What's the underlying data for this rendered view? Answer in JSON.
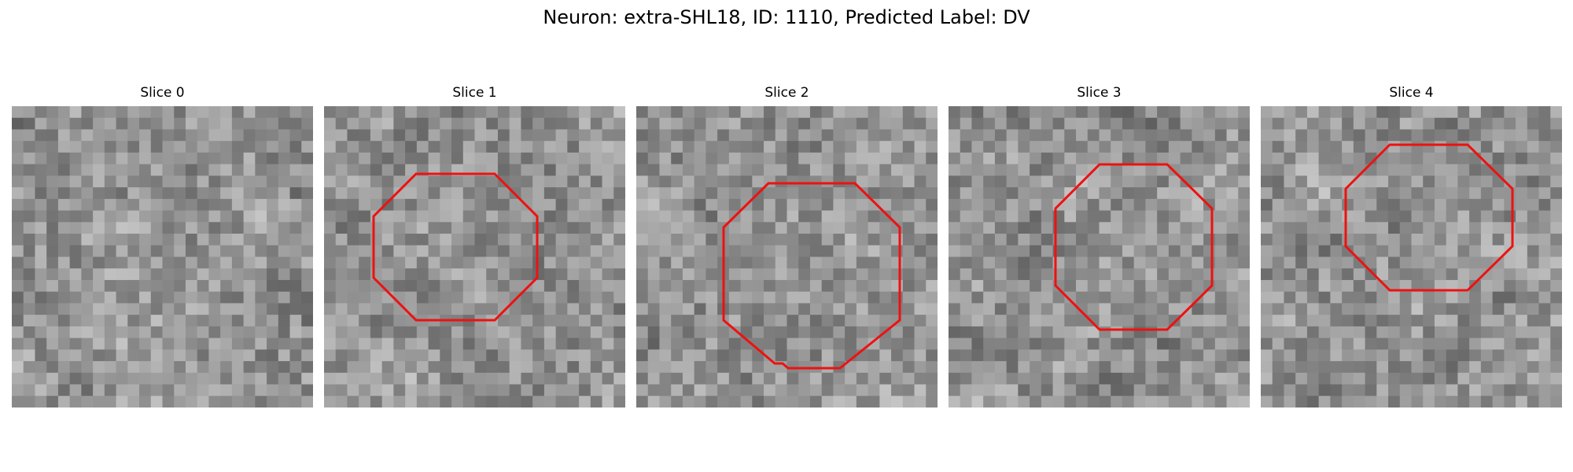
{
  "figure": {
    "title": "Neuron: extra-SHL18, ID: 1110, Predicted Label: DV",
    "contour_color": "#ee1111"
  },
  "slices": [
    {
      "label": "Slice 0",
      "has_contour": false
    },
    {
      "label": "Slice 1",
      "has_contour": true
    },
    {
      "label": "Slice 2",
      "has_contour": true
    },
    {
      "label": "Slice 3",
      "has_contour": true
    },
    {
      "label": "Slice 4",
      "has_contour": true
    }
  ]
}
